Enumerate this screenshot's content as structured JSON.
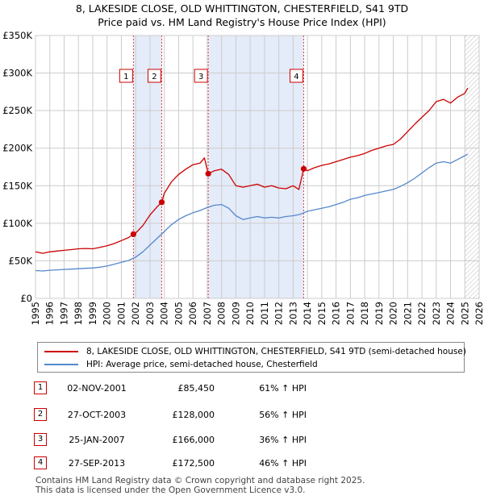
{
  "title_line1": "8, LAKESIDE CLOSE, OLD WHITTINGTON, CHESTERFIELD, S41 9TD",
  "title_line2": "Price paid vs. HM Land Registry's House Price Index (HPI)",
  "chart_data": {
    "type": "line",
    "title": "8, LAKESIDE CLOSE, OLD WHITTINGTON, CHESTERFIELD, S41 9TD — Price paid vs. HM Land Registry's House Price Index (HPI)",
    "xlabel": "",
    "ylabel": "",
    "xlim": [
      1995,
      2026
    ],
    "ylim": [
      0,
      350000
    ],
    "x_ticks": [
      1995,
      1996,
      1997,
      1998,
      1999,
      2000,
      2001,
      2002,
      2003,
      2004,
      2005,
      2006,
      2007,
      2008,
      2009,
      2010,
      2011,
      2012,
      2013,
      2014,
      2015,
      2016,
      2017,
      2018,
      2019,
      2020,
      2021,
      2022,
      2023,
      2024,
      2025,
      2026
    ],
    "y_ticks": [
      0,
      50000,
      100000,
      150000,
      200000,
      250000,
      300000,
      350000
    ],
    "y_tick_labels": [
      "£0",
      "£50K",
      "£100K",
      "£150K",
      "£200K",
      "£250K",
      "£300K",
      "£350K"
    ],
    "grid": true,
    "forecast_start": 2025.0,
    "series": [
      {
        "name": "8, LAKESIDE CLOSE, OLD WHITTINGTON, CHESTERFIELD, S41 9TD (semi-detached house)",
        "color": "#cc0000",
        "x": [
          1995.0,
          1995.5,
          1996.0,
          1996.5,
          1997.0,
          1997.5,
          1998.0,
          1998.5,
          1999.0,
          1999.5,
          2000.0,
          2000.5,
          2001.0,
          2001.5,
          2001.84,
          2002.0,
          2002.5,
          2003.0,
          2003.5,
          2003.82,
          2004.0,
          2004.5,
          2005.0,
          2005.5,
          2006.0,
          2006.5,
          2006.8,
          2007.07,
          2007.5,
          2008.0,
          2008.5,
          2009.0,
          2009.5,
          2010.0,
          2010.5,
          2011.0,
          2011.5,
          2012.0,
          2012.5,
          2013.0,
          2013.4,
          2013.74,
          2014.0,
          2014.5,
          2015.0,
          2015.5,
          2016.0,
          2016.5,
          2017.0,
          2017.5,
          2018.0,
          2018.5,
          2019.0,
          2019.5,
          2020.0,
          2020.5,
          2021.0,
          2021.5,
          2022.0,
          2022.5,
          2023.0,
          2023.5,
          2024.0,
          2024.5,
          2025.0,
          2025.2
        ],
        "y": [
          62000,
          60000,
          62000,
          63000,
          64000,
          65000,
          66000,
          66500,
          66000,
          68000,
          70000,
          73000,
          77000,
          81000,
          85450,
          87000,
          97000,
          111000,
          122000,
          128000,
          140000,
          155000,
          165000,
          172000,
          178000,
          180000,
          187000,
          166000,
          170000,
          172000,
          165000,
          150000,
          148000,
          150000,
          152000,
          148000,
          150000,
          147000,
          146000,
          150000,
          145000,
          172500,
          170000,
          174000,
          177000,
          179000,
          182000,
          185000,
          188000,
          190000,
          193000,
          197000,
          200000,
          203000,
          205000,
          212000,
          222000,
          232000,
          241000,
          250000,
          262000,
          265000,
          260000,
          268000,
          273000,
          280000
        ]
      },
      {
        "name": "HPI: Average price, semi-detached house, Chesterfield",
        "color": "#5588cc",
        "x": [
          1995.0,
          1995.5,
          1996.0,
          1996.5,
          1997.0,
          1997.5,
          1998.0,
          1998.5,
          1999.0,
          1999.5,
          2000.0,
          2000.5,
          2001.0,
          2001.5,
          2002.0,
          2002.5,
          2003.0,
          2003.5,
          2004.0,
          2004.5,
          2005.0,
          2005.5,
          2006.0,
          2006.5,
          2007.0,
          2007.5,
          2008.0,
          2008.5,
          2009.0,
          2009.5,
          2010.0,
          2010.5,
          2011.0,
          2011.5,
          2012.0,
          2012.5,
          2013.0,
          2013.5,
          2014.0,
          2014.5,
          2015.0,
          2015.5,
          2016.0,
          2016.5,
          2017.0,
          2017.5,
          2018.0,
          2018.5,
          2019.0,
          2019.5,
          2020.0,
          2020.5,
          2021.0,
          2021.5,
          2022.0,
          2022.5,
          2023.0,
          2023.5,
          2024.0,
          2024.5,
          2025.0,
          2025.2
        ],
        "y": [
          37000,
          36500,
          37500,
          38000,
          38500,
          39000,
          39500,
          40000,
          40500,
          41500,
          43000,
          45500,
          48000,
          50500,
          55000,
          62000,
          71000,
          80000,
          89000,
          98000,
          105000,
          110000,
          114000,
          117000,
          121000,
          124000,
          125000,
          120000,
          110000,
          105000,
          107000,
          109000,
          107000,
          108000,
          107000,
          109000,
          110000,
          112000,
          116000,
          118000,
          120000,
          122000,
          125000,
          128000,
          132000,
          134000,
          137000,
          139000,
          141000,
          143000,
          145000,
          149000,
          154000,
          160000,
          167000,
          174000,
          180000,
          182000,
          180000,
          185000,
          190000,
          192000
        ]
      }
    ],
    "sale_markers": [
      {
        "label": "1",
        "x": 2001.84,
        "y": 85450
      },
      {
        "label": "2",
        "x": 2003.82,
        "y": 128000
      },
      {
        "label": "3",
        "x": 2007.07,
        "y": 166000
      },
      {
        "label": "4",
        "x": 2013.74,
        "y": 172500
      }
    ],
    "shaded_spans": [
      [
        2001.84,
        2003.82
      ],
      [
        2007.07,
        2013.74
      ]
    ]
  },
  "legend": {
    "property_label": "8, LAKESIDE CLOSE, OLD WHITTINGTON, CHESTERFIELD, S41 9TD (semi-detached house)",
    "hpi_label": "HPI: Average price, semi-detached house, Chesterfield",
    "property_color": "#cc0000",
    "hpi_color": "#5588cc"
  },
  "sales": [
    {
      "num": "1",
      "date": "02-NOV-2001",
      "price": "£85,450",
      "hpi": "61% ↑ HPI"
    },
    {
      "num": "2",
      "date": "27-OCT-2003",
      "price": "£128,000",
      "hpi": "56% ↑ HPI"
    },
    {
      "num": "3",
      "date": "25-JAN-2007",
      "price": "£166,000",
      "hpi": "36% ↑ HPI"
    },
    {
      "num": "4",
      "date": "27-SEP-2013",
      "price": "£172,500",
      "hpi": "46% ↑ HPI"
    }
  ],
  "footer": {
    "line1": "Contains HM Land Registry data © Crown copyright and database right 2025.",
    "line2": "This data is licensed under the Open Government Licence v3.0."
  }
}
